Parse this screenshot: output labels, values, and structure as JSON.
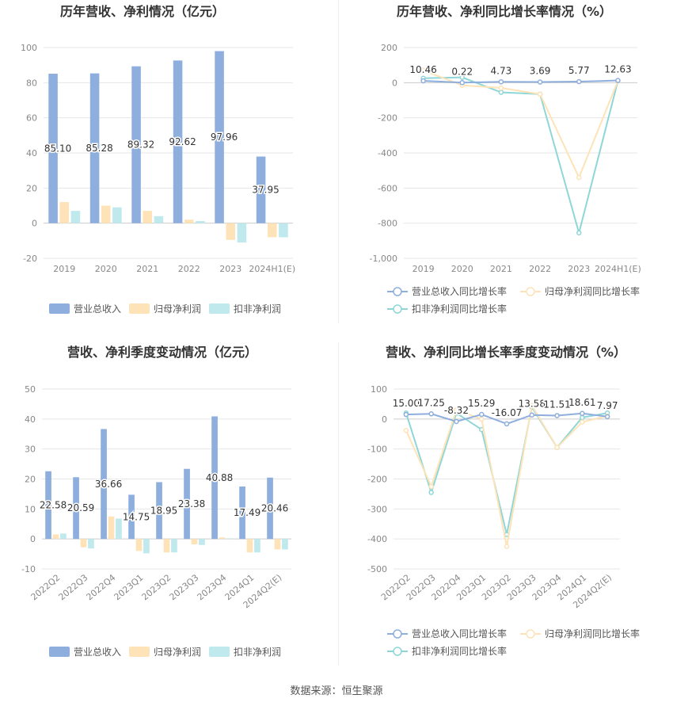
{
  "source_note": "数据来源：恒生聚源",
  "colors": {
    "revenue": "#8eaedd",
    "net_profit": "#fde3b7",
    "deducted_profit": "#bfe9ec",
    "growth_revenue": "#8eaedd",
    "growth_net": "#fde3b7",
    "growth_deducted": "#8fd6d6"
  },
  "chart_data": [
    {
      "id": "annual-bar",
      "type": "bar",
      "title": "历年营收、净利情况（亿元）",
      "categories": [
        "2019",
        "2020",
        "2021",
        "2022",
        "2023",
        "2024H1(E)"
      ],
      "ylim": [
        -20,
        100
      ],
      "yticks": [
        -20,
        0,
        20,
        40,
        60,
        80,
        100
      ],
      "grid": true,
      "legend_position": "bottom",
      "series": [
        {
          "name": "营业总收入",
          "values": [
            85.1,
            85.28,
            89.32,
            92.62,
            97.96,
            37.95
          ]
        },
        {
          "name": "归母净利润",
          "values": [
            12.0,
            10.0,
            7.0,
            2.0,
            -9.5,
            -8.0
          ]
        },
        {
          "name": "扣非净利润",
          "values": [
            7.0,
            9.0,
            4.0,
            1.2,
            -11.0,
            -8.0
          ]
        }
      ],
      "data_labels": [
        "85.10",
        "85.28",
        "89.32",
        "92.62",
        "97.96",
        "37.95"
      ]
    },
    {
      "id": "annual-growth",
      "type": "line",
      "title": "历年营收、净利同比增长率情况（%）",
      "categories": [
        "2019",
        "2020",
        "2021",
        "2022",
        "2023",
        "2024H1(E)"
      ],
      "ylim": [
        -1000,
        200
      ],
      "yticks": [
        -1000,
        -800,
        -600,
        -400,
        -200,
        0,
        200
      ],
      "ytick_labels": [
        "-1,000",
        "-800",
        "-600",
        "-400",
        "-200",
        "0",
        "200"
      ],
      "grid": true,
      "legend_position": "bottom",
      "series": [
        {
          "name": "营业总收入同比增长率",
          "values": [
            10.46,
            0.22,
            4.73,
            3.69,
            5.77,
            12.63
          ]
        },
        {
          "name": "归母净利润同比增长率",
          "values": [
            70,
            -15,
            -30,
            -65,
            -540,
            10
          ]
        },
        {
          "name": "扣非净利润同比增长率",
          "values": [
            25,
            30,
            -55,
            -65,
            -855,
            10
          ]
        }
      ],
      "data_labels": [
        "10.46",
        "0.22",
        "4.73",
        "3.69",
        "5.77",
        "12.63"
      ]
    },
    {
      "id": "quarter-bar",
      "type": "bar",
      "title": "营收、净利季度变动情况（亿元）",
      "categories": [
        "2022Q2",
        "2022Q3",
        "2022Q4",
        "2023Q1",
        "2023Q2",
        "2023Q3",
        "2023Q4",
        "2024Q1",
        "2024Q2(E)"
      ],
      "ylim": [
        -10,
        50
      ],
      "yticks": [
        -10,
        0,
        10,
        20,
        30,
        40,
        50
      ],
      "grid": true,
      "legend_position": "bottom",
      "series": [
        {
          "name": "营业总收入",
          "values": [
            22.58,
            20.59,
            36.66,
            14.75,
            18.95,
            23.38,
            40.88,
            17.49,
            20.46
          ]
        },
        {
          "name": "归母净利润",
          "values": [
            1.5,
            -2.8,
            7.5,
            -4.0,
            -4.5,
            -1.8,
            0.5,
            -4.5,
            -3.5
          ]
        },
        {
          "name": "扣非净利润",
          "values": [
            1.8,
            -3.2,
            6.8,
            -4.8,
            -4.5,
            -2.0,
            0.2,
            -4.5,
            -3.5
          ]
        }
      ],
      "data_labels": [
        "22.58",
        "20.59",
        "36.66",
        "14.75",
        "18.95",
        "23.38",
        "40.88",
        "17.49",
        "20.46"
      ]
    },
    {
      "id": "quarter-growth",
      "type": "line",
      "title": "营收、净利同比增长率季度变动情况（%）",
      "categories": [
        "2022Q2",
        "2022Q3",
        "2022Q4",
        "2023Q1",
        "2023Q2",
        "2023Q3",
        "2023Q4",
        "2024Q1",
        "2024Q2(E)"
      ],
      "ylim": [
        -500,
        100
      ],
      "yticks": [
        -500,
        -400,
        -300,
        -200,
        -100,
        0,
        100
      ],
      "ytick_labels": [
        "-500",
        "-400",
        "-300",
        "-200",
        "-100",
        "0",
        "100"
      ],
      "grid": true,
      "legend_position": "bottom",
      "series": [
        {
          "name": "营业总收入同比增长率",
          "values": [
            15.0,
            17.25,
            -8.32,
            15.29,
            -16.07,
            13.58,
            11.51,
            18.61,
            7.97
          ]
        },
        {
          "name": "归母净利润同比增长率",
          "values": [
            -38,
            -225,
            30,
            0,
            -425,
            45,
            -95,
            -10,
            10
          ]
        },
        {
          "name": "扣非净利润同比增长率",
          "values": [
            20,
            -245,
            20,
            -35,
            -385,
            40,
            -95,
            5,
            20
          ]
        }
      ],
      "data_labels": [
        "15.00",
        "17.25",
        "-8.32",
        "15.29",
        "-16.07",
        "13.58",
        "11.51",
        "18.61",
        "7.97"
      ]
    }
  ]
}
